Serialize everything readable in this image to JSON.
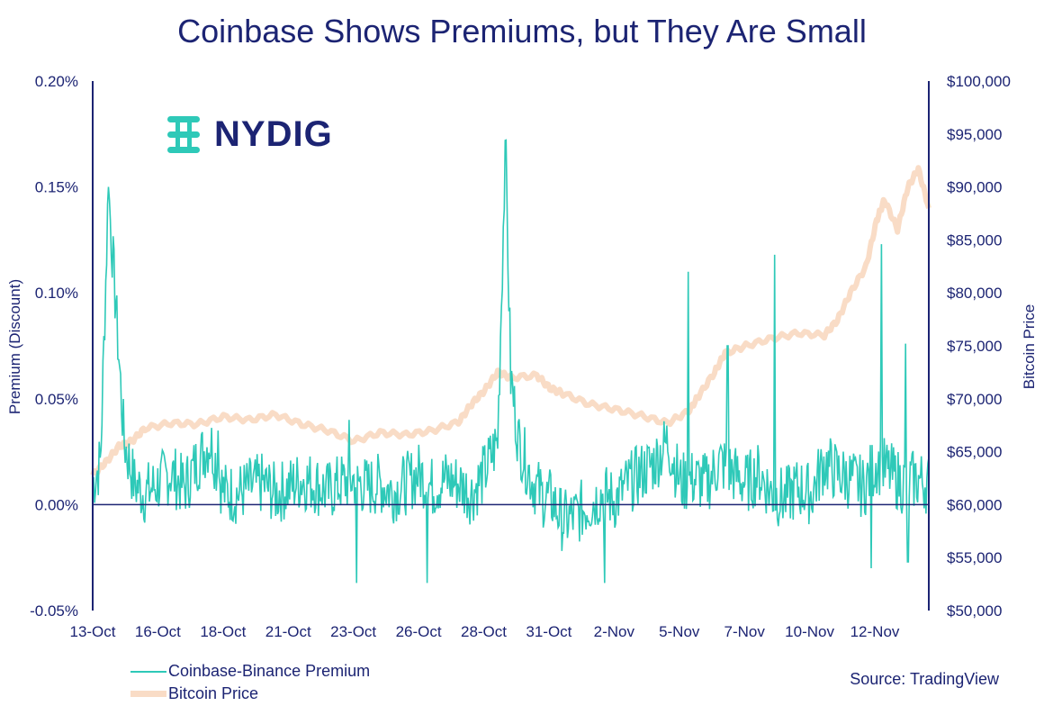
{
  "chart_data": {
    "type": "line",
    "title": "Coinbase Shows Premiums, but They Are Small",
    "ylabel_left": "Premium (Discount)",
    "ylabel_right": "Bitcoin Price",
    "y_left_ticks": [
      "-0.05%",
      "0.00%",
      "0.05%",
      "0.10%",
      "0.15%",
      "0.20%"
    ],
    "y_left_range": [
      -0.05,
      0.2
    ],
    "y_right_ticks": [
      "$50,000",
      "$55,000",
      "$60,000",
      "$65,000",
      "$70,000",
      "$75,000",
      "$80,000",
      "$85,000",
      "$90,000",
      "$95,000",
      "$100,000"
    ],
    "y_right_range": [
      50000,
      100000
    ],
    "x_tick_labels": [
      "13-Oct",
      "16-Oct",
      "18-Oct",
      "21-Oct",
      "23-Oct",
      "26-Oct",
      "28-Oct",
      "31-Oct",
      "2-Nov",
      "5-Nov",
      "7-Nov",
      "10-Nov",
      "12-Nov"
    ],
    "x_range_days": [
      0,
      32
    ],
    "series": [
      {
        "name": "Coinbase-Binance Premium",
        "axis": "left",
        "color": "#2ec9b8",
        "points": [
          [
            0,
            0.01
          ],
          [
            0.3,
            0.02
          ],
          [
            0.6,
            0.15
          ],
          [
            0.9,
            0.09
          ],
          [
            1.2,
            0.03
          ],
          [
            1.6,
            0.01
          ],
          [
            2,
            0.005
          ],
          [
            2.5,
            0.01
          ],
          [
            3,
            0.015
          ],
          [
            3.5,
            0.008
          ],
          [
            4,
            0.02
          ],
          [
            4.5,
            0.03
          ],
          [
            5,
            0.006
          ],
          [
            5.5,
            0.005
          ],
          [
            6,
            0.008
          ],
          [
            6.5,
            0.01
          ],
          [
            7,
            0.005
          ],
          [
            7.5,
            0.008
          ],
          [
            8,
            0.012
          ],
          [
            8.5,
            0.01
          ],
          [
            9,
            0.006
          ],
          [
            9.5,
            0.01
          ],
          [
            10,
            0.012
          ],
          [
            10.5,
            0.008
          ],
          [
            11,
            0.01
          ],
          [
            11.5,
            0.006
          ],
          [
            12,
            0.01
          ],
          [
            12.5,
            0.015
          ],
          [
            13,
            0.008
          ],
          [
            13.5,
            0.012
          ],
          [
            14,
            0.01
          ],
          [
            14.5,
            0.005
          ],
          [
            15,
            0.015
          ],
          [
            15.5,
            0.03
          ],
          [
            15.8,
            0.17
          ],
          [
            16,
            0.06
          ],
          [
            16.3,
            0.03
          ],
          [
            16.8,
            0.012
          ],
          [
            17.2,
            0.004
          ],
          [
            17.6,
            0.002
          ],
          [
            18,
            -0.008
          ],
          [
            18.5,
            -0.005
          ],
          [
            19,
            0.0
          ],
          [
            19.5,
            0.005
          ],
          [
            20,
            0.002
          ],
          [
            20.5,
            0.01
          ],
          [
            21,
            0.015
          ],
          [
            21.5,
            0.02
          ],
          [
            22,
            0.03
          ],
          [
            22.5,
            0.01
          ],
          [
            23,
            0.012
          ],
          [
            23.5,
            0.01
          ],
          [
            24,
            0.02
          ],
          [
            24.5,
            0.015
          ],
          [
            25,
            0.01
          ],
          [
            25.5,
            0.015
          ],
          [
            26,
            0.005
          ],
          [
            26.5,
            0.003
          ],
          [
            27,
            0.008
          ],
          [
            27.5,
            0.005
          ],
          [
            28,
            0.02
          ],
          [
            28.5,
            0.015
          ],
          [
            29,
            0.012
          ],
          [
            29.5,
            0.008
          ],
          [
            30,
            0.02
          ],
          [
            30.5,
            0.015
          ],
          [
            31,
            0.01
          ],
          [
            31.5,
            0.012
          ],
          [
            32,
            0.01
          ]
        ],
        "spikes": [
          [
            0.6,
            0.15
          ],
          [
            0.9,
            0.095
          ],
          [
            4.8,
            0.035
          ],
          [
            9.8,
            0.04
          ],
          [
            15.8,
            0.172
          ],
          [
            22.8,
            0.11
          ],
          [
            24.3,
            0.075
          ],
          [
            26.1,
            0.118
          ],
          [
            30.2,
            0.123
          ],
          [
            31.1,
            0.076
          ],
          [
            -0.1,
            0.0
          ],
          [
            10.1,
            -0.037
          ],
          [
            12.8,
            -0.037
          ],
          [
            19.6,
            -0.037
          ],
          [
            29.8,
            -0.03
          ],
          [
            31.2,
            -0.027
          ]
        ]
      },
      {
        "name": "Bitcoin Price",
        "axis": "right",
        "color": "#f9dcc6",
        "points": [
          [
            0,
            62800
          ],
          [
            0.5,
            64000
          ],
          [
            1,
            65500
          ],
          [
            1.5,
            66000
          ],
          [
            2,
            67200
          ],
          [
            3,
            67700
          ],
          [
            4,
            67600
          ],
          [
            5,
            68300
          ],
          [
            6,
            68000
          ],
          [
            7,
            68500
          ],
          [
            8,
            67600
          ],
          [
            9,
            67000
          ],
          [
            10,
            66000
          ],
          [
            11,
            66800
          ],
          [
            12,
            66600
          ],
          [
            13,
            67000
          ],
          [
            14,
            67800
          ],
          [
            14.5,
            69500
          ],
          [
            15,
            70800
          ],
          [
            15.5,
            72500
          ],
          [
            16,
            72000
          ],
          [
            17,
            72200
          ],
          [
            17.5,
            71000
          ],
          [
            18,
            70500
          ],
          [
            19,
            69500
          ],
          [
            20,
            69000
          ],
          [
            21,
            68400
          ],
          [
            22,
            67700
          ],
          [
            22.8,
            68800
          ],
          [
            23.2,
            70300
          ],
          [
            23.8,
            72500
          ],
          [
            24.2,
            74300
          ],
          [
            25,
            75000
          ],
          [
            26,
            75700
          ],
          [
            27,
            76200
          ],
          [
            28,
            76000
          ],
          [
            28.5,
            77400
          ],
          [
            29,
            80000
          ],
          [
            29.6,
            82500
          ],
          [
            30,
            86800
          ],
          [
            30.3,
            88800
          ],
          [
            30.8,
            86000
          ],
          [
            31.2,
            90000
          ],
          [
            31.6,
            91700
          ],
          [
            32,
            88000
          ]
        ]
      }
    ],
    "zero_line": true
  },
  "legend": {
    "premium_label": "Coinbase-Binance Premium",
    "price_label": "Bitcoin Price"
  },
  "source": "Source: TradingView",
  "logo_text": "NYDIG",
  "colors": {
    "navy": "#1c2473",
    "teal": "#2ec9b8",
    "peach": "#f9dcc6"
  }
}
